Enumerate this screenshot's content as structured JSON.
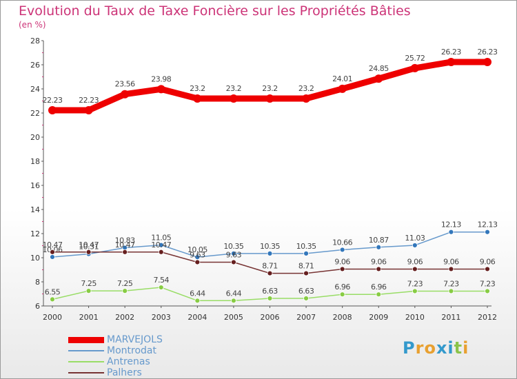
{
  "title": "Evolution du Taux de Taxe Foncière sur les Propriétés Bâties",
  "unit_label": "(en %)",
  "logo": {
    "text": "Proxiti",
    "colors": [
      "#3399cc",
      "#e8a030",
      "#e8a030",
      "#3399cc",
      "#3399cc",
      "#8bc34a",
      "#e8a030"
    ]
  },
  "chart_data": {
    "type": "line",
    "x": [
      "2000",
      "2001",
      "2002",
      "2003",
      "2004",
      "2005",
      "2006",
      "2007",
      "2008",
      "2009",
      "2010",
      "2011",
      "2012"
    ],
    "ylim": [
      6,
      28
    ],
    "yticks": [
      "6",
      "8",
      "10",
      "12",
      "14",
      "16",
      "18",
      "20",
      "22",
      "24",
      "26",
      "28"
    ],
    "grid": false,
    "legend_position": "bottom-left",
    "series": [
      {
        "name": "MARVEJOLS",
        "color": "#ee0000",
        "marker": "#ee0000",
        "values": [
          22.23,
          22.23,
          23.56,
          23.98,
          23.2,
          23.2,
          23.2,
          23.2,
          24.01,
          24.85,
          25.72,
          26.23,
          26.23
        ],
        "labels": [
          "22.23",
          "22.23",
          "23.56",
          "23.98",
          "23.2",
          "23.2",
          "23.2",
          "23.2",
          "24.01",
          "24.85",
          "25.72",
          "26.23",
          "26.23"
        ]
      },
      {
        "name": "Montrodat",
        "color": "#6699cc",
        "marker": "#3377bb",
        "values": [
          10.06,
          10.31,
          10.83,
          11.05,
          10.05,
          10.35,
          10.35,
          10.35,
          10.66,
          10.87,
          11.03,
          12.13,
          12.13
        ],
        "labels": [
          "10.06",
          "10.31",
          "10.83",
          "11.05",
          "10.05",
          "10.35",
          "10.35",
          "10.35",
          "10.66",
          "10.87",
          "11.03",
          "12.13",
          "12.13"
        ]
      },
      {
        "name": "Antrenas",
        "color": "#99dd66",
        "marker": "#88cc44",
        "values": [
          6.55,
          7.25,
          7.25,
          7.54,
          6.44,
          6.44,
          6.63,
          6.63,
          6.96,
          6.96,
          7.23,
          7.23,
          7.23
        ],
        "labels": [
          "6.55",
          "7.25",
          "7.25",
          "7.54",
          "6.44",
          "6.44",
          "6.63",
          "6.63",
          "6.96",
          "6.96",
          "7.23",
          "7.23",
          "7.23"
        ]
      },
      {
        "name": "Palhers",
        "color": "#773333",
        "marker": "#661f1f",
        "values": [
          10.47,
          10.47,
          10.47,
          10.47,
          9.63,
          9.63,
          8.71,
          8.71,
          9.06,
          9.06,
          9.06,
          9.06,
          9.06
        ],
        "labels": [
          "10.47",
          "10.47",
          "10.47",
          "10.47",
          "9.63",
          "9.63",
          "8.71",
          "8.71",
          "9.06",
          "9.06",
          "9.06",
          "9.06",
          "9.06"
        ]
      }
    ]
  }
}
